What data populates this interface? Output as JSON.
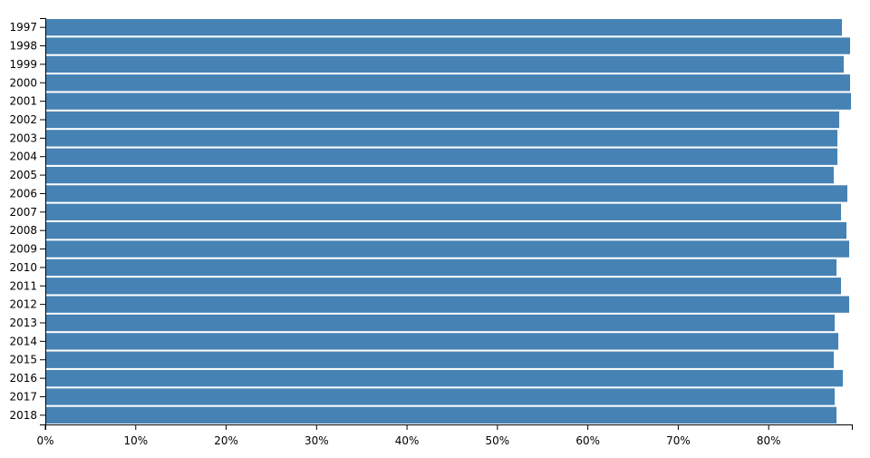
{
  "chart_data": {
    "type": "bar",
    "orientation": "horizontal",
    "categories": [
      "1997",
      "1998",
      "1999",
      "2000",
      "2001",
      "2002",
      "2003",
      "2004",
      "2005",
      "2006",
      "2007",
      "2008",
      "2009",
      "2010",
      "2011",
      "2012",
      "2013",
      "2014",
      "2015",
      "2016",
      "2017",
      "2018"
    ],
    "values": [
      88.1,
      89.0,
      88.3,
      89.0,
      89.1,
      87.8,
      87.6,
      87.6,
      87.2,
      88.7,
      88.0,
      88.6,
      88.9,
      87.5,
      88.0,
      88.9,
      87.3,
      87.7,
      87.2,
      88.2,
      87.3,
      87.5
    ],
    "xlim": [
      0,
      89.2
    ],
    "x_ticks": [
      0,
      10,
      20,
      30,
      40,
      50,
      60,
      70,
      80
    ],
    "x_tick_labels": [
      "0%",
      "10%",
      "20%",
      "30%",
      "40%",
      "50%",
      "60%",
      "70%",
      "80%"
    ],
    "bar_color": "#4682b4",
    "grid": false,
    "title": "",
    "xlabel": "",
    "ylabel": ""
  }
}
